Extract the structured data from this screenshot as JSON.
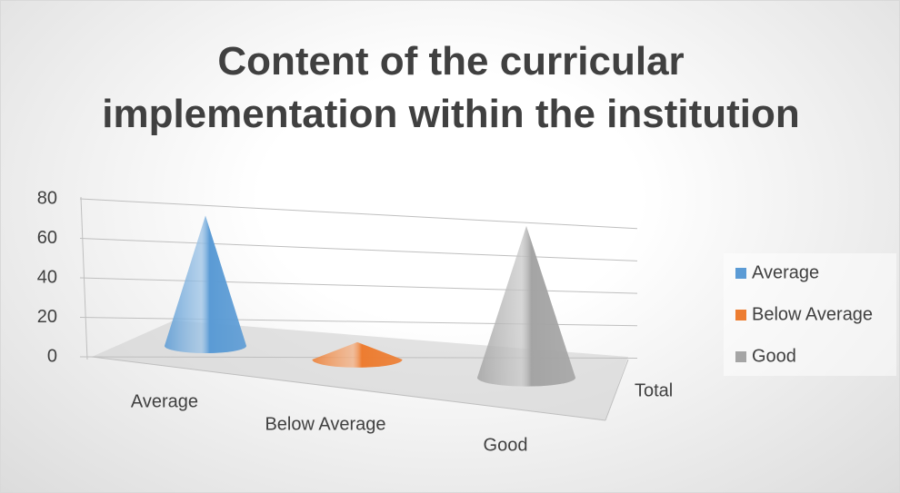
{
  "chart_data": {
    "type": "cone3d",
    "title": "Content of the curricular implementation within the institution",
    "categories": [
      "Total"
    ],
    "series": [
      {
        "name": "Average",
        "color": "#5b9bd5",
        "values": [
          66
        ]
      },
      {
        "name": "Below Average",
        "color": "#ed7d31",
        "values": [
          8
        ]
      },
      {
        "name": "Good",
        "color": "#a5a5a5",
        "values": [
          64
        ]
      }
    ],
    "ylim": [
      0,
      80
    ],
    "yticks": [
      0,
      20,
      40,
      60,
      80
    ],
    "grid": true,
    "legend": "right"
  }
}
